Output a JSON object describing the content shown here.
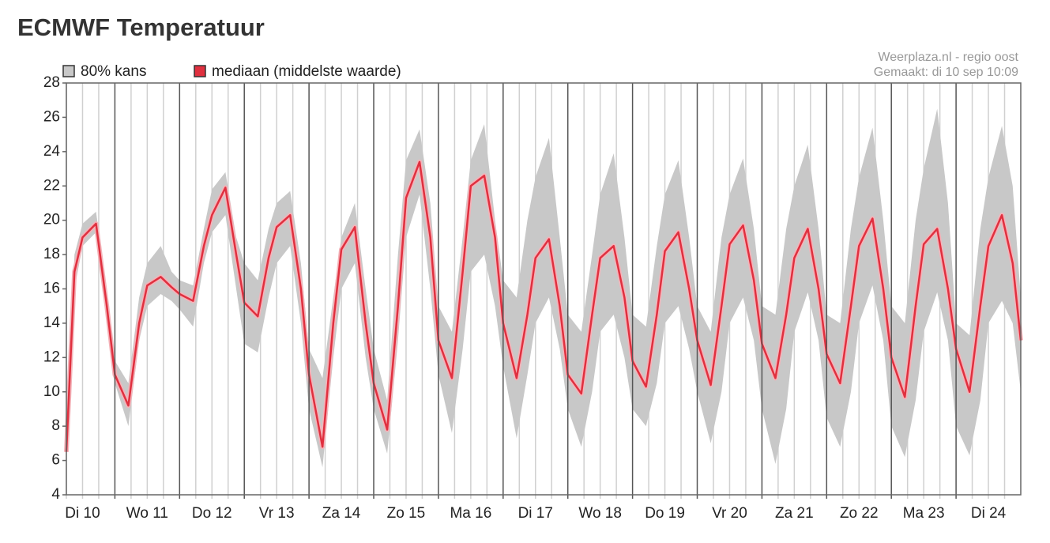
{
  "chart_data": {
    "type": "band-line",
    "title": "ECMWF Temperatuur",
    "annotations": [
      "Weerplaza.nl - regio oost",
      "Gemaakt: di 10 sep 10:09"
    ],
    "x": [
      6,
      9,
      12,
      17,
      21,
      24,
      29,
      33,
      36,
      41,
      45,
      48,
      53,
      57,
      60,
      65,
      69,
      72,
      77,
      81,
      84,
      89,
      93,
      96,
      101,
      105,
      108,
      113,
      117,
      120,
      125,
      129,
      132,
      137,
      141,
      144,
      149,
      153,
      156,
      161,
      165,
      168,
      173,
      177,
      180,
      185,
      189,
      192,
      197,
      201,
      204,
      209,
      213,
      216,
      221,
      225,
      228,
      233,
      237,
      240,
      245,
      249,
      252,
      257,
      261,
      264,
      269,
      273,
      276,
      281,
      285,
      288,
      293,
      297,
      300,
      305,
      309,
      312,
      317,
      321,
      324,
      329,
      333,
      336,
      341,
      345,
      348,
      353,
      357,
      360
    ],
    "xlim": [
      6,
      360
    ],
    "xticks": [
      {
        "value": 12,
        "label": "Di 10"
      },
      {
        "value": 36,
        "label": "Wo 11"
      },
      {
        "value": 60,
        "label": "Do 12"
      },
      {
        "value": 84,
        "label": "Vr 13"
      },
      {
        "value": 108,
        "label": "Za 14"
      },
      {
        "value": 132,
        "label": "Zo 15"
      },
      {
        "value": 156,
        "label": "Ma 16"
      },
      {
        "value": 180,
        "label": "Di 17"
      },
      {
        "value": 204,
        "label": "Wo 18"
      },
      {
        "value": 228,
        "label": "Do 19"
      },
      {
        "value": 252,
        "label": "Vr 20"
      },
      {
        "value": 276,
        "label": "Za 21"
      },
      {
        "value": 300,
        "label": "Zo 22"
      },
      {
        "value": 324,
        "label": "Ma 23"
      },
      {
        "value": 348,
        "label": "Di 24"
      }
    ],
    "xmajor_step": 24,
    "xminor_step": 6,
    "ylim": [
      4,
      28
    ],
    "yticks": [
      4,
      6,
      8,
      10,
      12,
      14,
      16,
      18,
      20,
      22,
      24,
      26,
      28
    ],
    "series": [
      {
        "name": "80% kans",
        "color": "#c8c8c8",
        "low": [
          6,
          16,
          18.5,
          19.3,
          14,
          10.5,
          8,
          13,
          15,
          15.7,
          15.3,
          14.8,
          13.8,
          17.5,
          19.3,
          20.3,
          16,
          12.8,
          12.3,
          15.5,
          17.5,
          18.5,
          14,
          9,
          5.6,
          12,
          16,
          17.5,
          12,
          9,
          6.4,
          13,
          19,
          21.5,
          16,
          11,
          7.6,
          12.5,
          17,
          18,
          15,
          11.5,
          7.3,
          11,
          14,
          15.5,
          12.5,
          9,
          6.8,
          10,
          13.5,
          14.5,
          12,
          9,
          8,
          10.5,
          14,
          15,
          12.5,
          10,
          7,
          10,
          14,
          15.5,
          13,
          9,
          5.8,
          9,
          13.5,
          15.8,
          13,
          8.5,
          6.8,
          10,
          14,
          16.2,
          13,
          8,
          6.2,
          9.5,
          13.5,
          15.8,
          13,
          8,
          6.3,
          9.5,
          14,
          15.3,
          14,
          10
        ],
        "high": [
          7,
          18,
          19.8,
          20.5,
          16,
          11.8,
          10.5,
          15.5,
          17.5,
          18.5,
          17,
          16.5,
          16.2,
          19.5,
          21.8,
          22.8,
          19,
          17.5,
          16.5,
          19.5,
          21,
          21.7,
          17.5,
          12.5,
          10.8,
          15.5,
          19,
          21,
          16,
          12.5,
          9.5,
          18,
          23.5,
          25.3,
          21,
          15,
          13.5,
          19,
          23.5,
          25.6,
          20,
          16.5,
          15.5,
          20,
          22.5,
          24.8,
          19,
          14.5,
          13.5,
          18,
          21.5,
          23.9,
          19,
          14.5,
          13.8,
          18.5,
          21.5,
          23.5,
          19,
          15,
          13.5,
          19,
          21.5,
          23.6,
          19.5,
          15,
          14.5,
          19.5,
          22,
          24.4,
          19.5,
          14.5,
          14,
          19.5,
          22.5,
          25.4,
          20,
          15,
          14,
          20,
          23,
          26.5,
          21,
          14,
          13.3,
          19.5,
          22.5,
          25.5,
          22,
          15.5
        ]
      },
      {
        "name": "mediaan (middelste waarde)",
        "color": "#e0303f",
        "values": [
          6.5,
          17,
          19,
          19.8,
          15,
          11,
          9.2,
          14,
          16.2,
          16.7,
          16.1,
          15.7,
          15.3,
          18.5,
          20.3,
          21.9,
          18,
          15.2,
          14.4,
          17.8,
          19.6,
          20.3,
          16,
          11,
          6.8,
          14,
          18.3,
          19.6,
          14,
          10.5,
          7.8,
          15,
          21.3,
          23.4,
          19,
          13,
          10.8,
          17,
          22,
          22.6,
          19,
          14,
          10.8,
          14.5,
          17.8,
          18.9,
          15,
          11,
          9.9,
          14.5,
          17.8,
          18.5,
          15.5,
          11.8,
          10.3,
          14.5,
          18.2,
          19.3,
          16,
          13,
          10.4,
          15,
          18.6,
          19.7,
          16.5,
          12.8,
          10.8,
          14.5,
          17.8,
          19.5,
          16,
          12.2,
          10.5,
          15,
          18.5,
          20.1,
          16,
          12,
          9.7,
          15,
          18.6,
          19.5,
          16,
          12.5,
          10,
          15,
          18.5,
          20.3,
          17.5,
          13
        ]
      }
    ]
  }
}
